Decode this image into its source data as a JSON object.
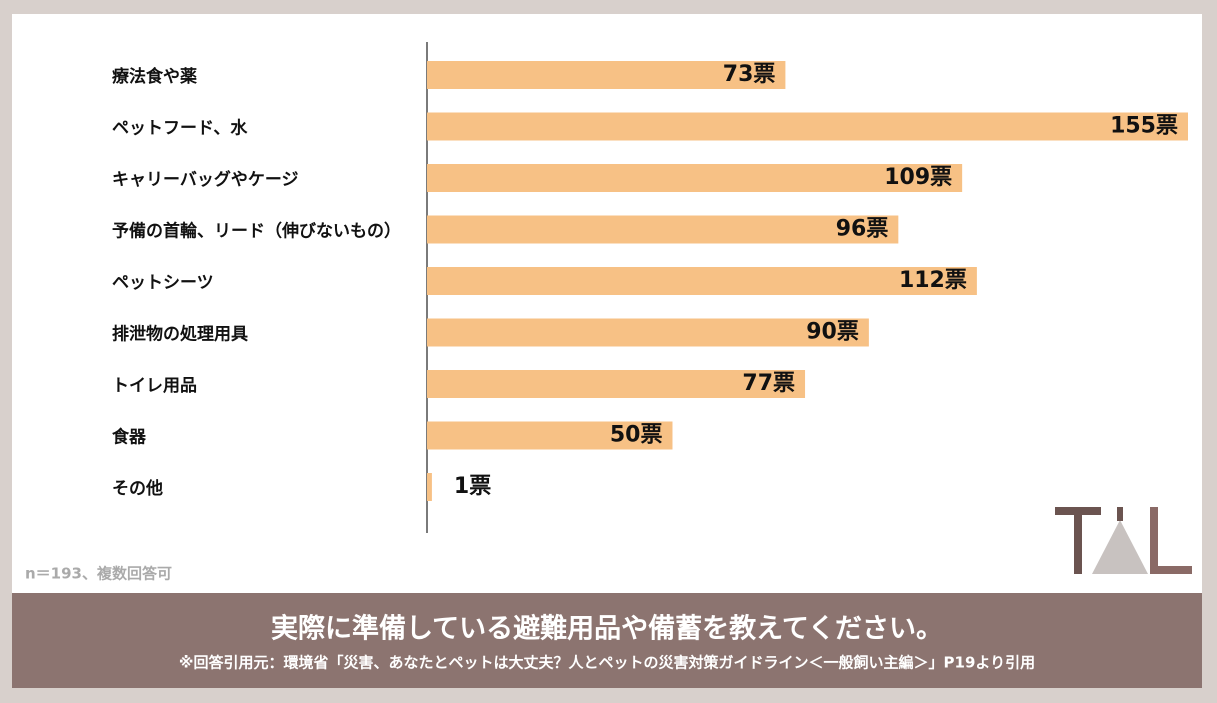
{
  "chart_data": {
    "type": "barh",
    "title": "実際に準備している避難用品や備蓄を教えてください。",
    "source": "※回答引用元：環境省「災害、あなたとペットは大丈夫？人とペットの災害対策ガイドライン＜一般飼い主編＞」P19より引用",
    "note": "n＝193、複数回答可",
    "categories": [
      "療法食や薬",
      "ペットフード、水",
      "キャリーバッグやケージ",
      "予備の首輪、リード（伸びないもの）",
      "ペットシーツ",
      "排泄物の処理用具",
      "トイレ用品",
      "食器",
      "その他"
    ],
    "values": [
      73,
      155,
      109,
      96,
      112,
      90,
      77,
      50,
      1
    ],
    "value_labels": [
      "73票",
      "155票",
      "109票",
      "96票",
      "112票",
      "90票",
      "77票",
      "50票",
      "1票"
    ],
    "color": "#f7c185"
  }
}
